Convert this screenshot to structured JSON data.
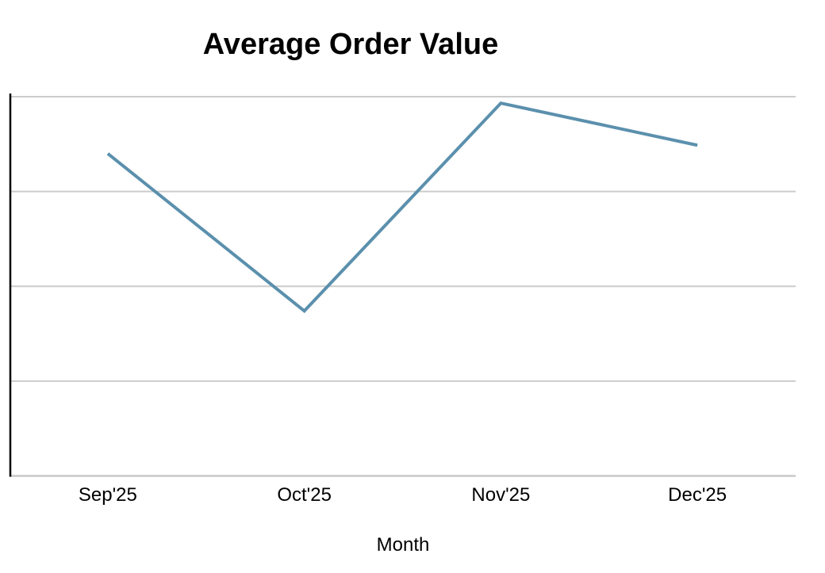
{
  "chart_data": {
    "type": "line",
    "title": "Average Order Value",
    "xlabel": "Month",
    "ylabel": "",
    "categories": [
      "Sep'25",
      "Oct'25",
      "Nov'25",
      "Dec'25"
    ],
    "series": [
      {
        "name": "Average Order Value",
        "values": [
          85,
          43.5,
          98.3,
          87.2
        ]
      }
    ],
    "ylim": [
      0,
      100
    ],
    "y_gridlines": [
      25,
      50,
      75,
      100
    ],
    "y_tick_labels_visible": false,
    "grid": "horizontal",
    "legend": "none",
    "colors": {
      "line": "#5B90AD",
      "gridline": "#CCCCCC",
      "baseline": "#C9C9C9",
      "y_axis_spine": "#000000",
      "text": "#000000",
      "background": "#FFFFFF"
    }
  }
}
